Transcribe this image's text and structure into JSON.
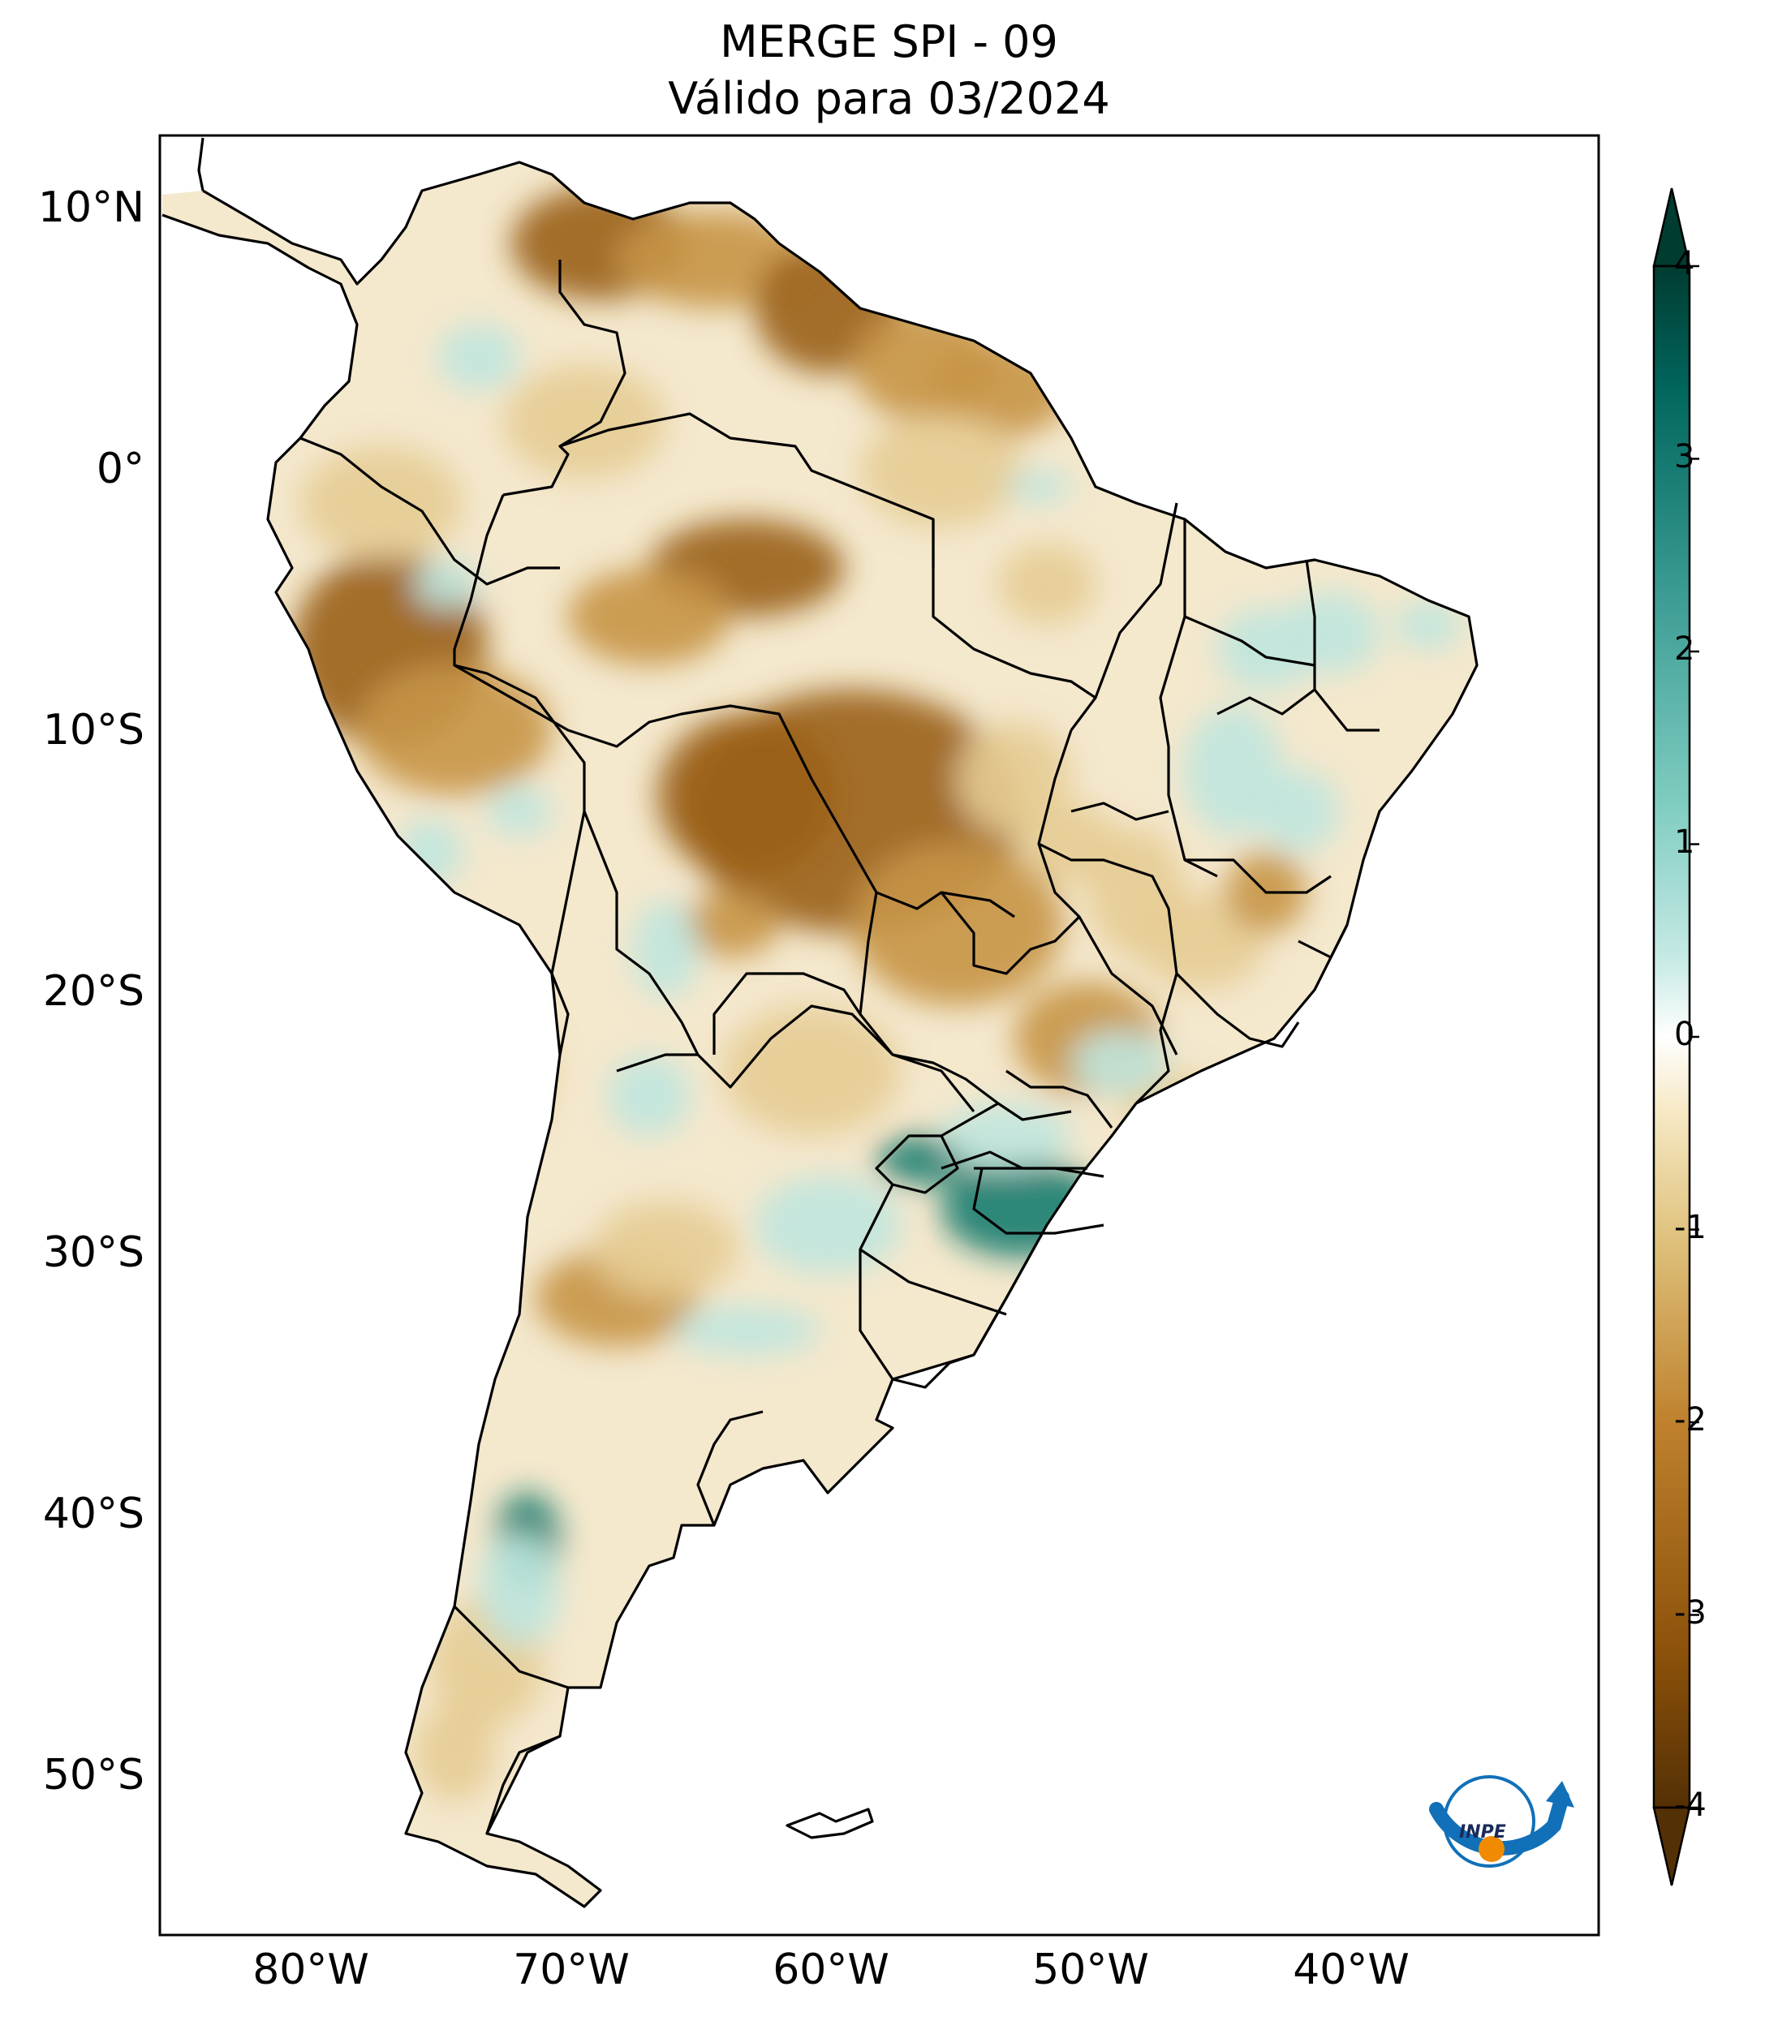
{
  "title": "MERGE   SPI - 09",
  "subtitle": "Válido para 03/2024",
  "lat_labels": [
    "10°N",
    "0°",
    "10°S",
    "20°S",
    "30°S",
    "40°S",
    "50°S"
  ],
  "lon_labels": [
    "80°W",
    "70°W",
    "60°W",
    "50°W",
    "40°W"
  ],
  "colorbar": {
    "ticks": [
      "4",
      "3",
      "2",
      "1",
      "0",
      "-1",
      "-2",
      "-3",
      "-4"
    ],
    "min": -4,
    "max": 4,
    "extend": "both",
    "colors": [
      "#543005",
      "#8c510a",
      "#bf812d",
      "#dfc27d",
      "#f6e8c3",
      "#ffffff",
      "#c7eae5",
      "#80cdc1",
      "#35978f",
      "#01665e",
      "#003c30"
    ]
  },
  "logo": {
    "text": "INPE",
    "colors": {
      "blue": "#1170b8",
      "orange": "#f08a00"
    }
  },
  "map_colors": {
    "dry_strong": "#9a6118",
    "dry_mod": "#c79546",
    "dry_light": "#e6cc94",
    "neutral": "#fbf6ea",
    "wet_light": "#bfe5de",
    "wet_strong": "#1a7d70"
  }
}
